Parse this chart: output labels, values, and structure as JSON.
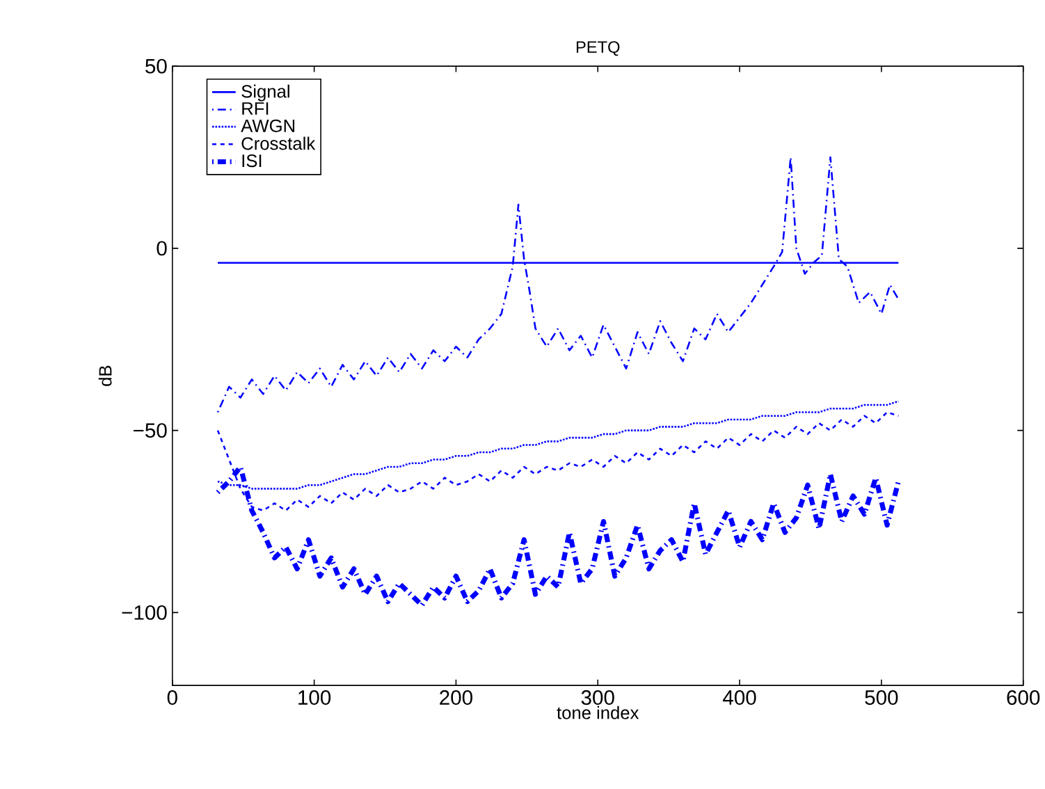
{
  "chart_data": {
    "type": "line",
    "title": "PETQ",
    "xlabel": "tone index",
    "ylabel": "dB",
    "xlim": [
      0,
      600
    ],
    "ylim": [
      -120,
      50
    ],
    "xticks": [
      0,
      100,
      200,
      300,
      400,
      500,
      600
    ],
    "yticks": [
      {
        "value": -100,
        "label": "−100"
      },
      {
        "value": -50,
        "label": "−50"
      },
      0,
      50
    ],
    "grid": false,
    "legend": "top left",
    "marker": "none",
    "x": [
      32,
      40,
      48,
      56,
      64,
      72,
      80,
      88,
      96,
      104,
      112,
      120,
      128,
      136,
      144,
      152,
      160,
      168,
      176,
      184,
      192,
      200,
      208,
      216,
      224,
      232,
      240,
      248,
      256,
      264,
      272,
      280,
      288,
      296,
      304,
      312,
      320,
      328,
      336,
      344,
      352,
      360,
      368,
      376,
      384,
      392,
      400,
      408,
      416,
      424,
      432,
      440,
      448,
      456,
      464,
      472,
      480,
      488,
      496,
      504,
      512
    ],
    "series": [
      {
        "name": "Signal",
        "color": "#0000ff",
        "line_style": "solid",
        "x": [
          32,
          512
        ],
        "values": [
          -4,
          -4
        ]
      },
      {
        "name": "RFI",
        "color": "#0000ff",
        "line_style": "dashdot",
        "x": [
          32,
          40,
          48,
          56,
          64,
          72,
          80,
          88,
          96,
          104,
          112,
          120,
          128,
          136,
          144,
          152,
          160,
          168,
          176,
          184,
          192,
          200,
          208,
          216,
          224,
          232,
          240,
          244,
          248,
          252,
          256,
          264,
          272,
          280,
          288,
          296,
          304,
          312,
          320,
          328,
          336,
          344,
          352,
          360,
          368,
          376,
          384,
          392,
          400,
          408,
          416,
          424,
          430,
          436,
          440,
          446,
          452,
          458,
          464,
          470,
          476,
          484,
          492,
          500,
          506,
          512
        ],
        "values": [
          -45,
          -38,
          -41,
          -36,
          -40,
          -35,
          -39,
          -34,
          -37,
          -33,
          -38,
          -32,
          -36,
          -31,
          -35,
          -30,
          -34,
          -29,
          -33,
          -28,
          -31,
          -27,
          -30,
          -25,
          -22,
          -18,
          -5,
          12,
          -3,
          -12,
          -22,
          -27,
          -22,
          -28,
          -24,
          -30,
          -21,
          -27,
          -33,
          -23,
          -29,
          -20,
          -26,
          -31,
          -22,
          -25,
          -18,
          -23,
          -19,
          -15,
          -10,
          -5,
          -1,
          25,
          0,
          -7,
          -4,
          -2,
          25,
          -3,
          -5,
          -15,
          -12,
          -18,
          -10,
          -14
        ]
      },
      {
        "name": "AWGN",
        "color": "#0000ff",
        "line_style": "dotted",
        "values": [
          -64,
          -65,
          -65,
          -66,
          -66,
          -66,
          -66,
          -66,
          -65,
          -65,
          -64,
          -63,
          -62,
          -62,
          -61,
          -60,
          -60,
          -59,
          -59,
          -58,
          -58,
          -57,
          -57,
          -56,
          -56,
          -55,
          -55,
          -54,
          -54,
          -53,
          -53,
          -52,
          -52,
          -52,
          -51,
          -51,
          -50,
          -50,
          -50,
          -49,
          -49,
          -49,
          -48,
          -48,
          -48,
          -47,
          -47,
          -47,
          -46,
          -46,
          -46,
          -45,
          -45,
          -45,
          -44,
          -44,
          -44,
          -43,
          -43,
          -43,
          -42
        ]
      },
      {
        "name": "Crosstalk",
        "color": "#0000ff",
        "line_style": "dashed",
        "values": [
          -50,
          -58,
          -66,
          -71,
          -72,
          -70,
          -72,
          -69,
          -71,
          -68,
          -70,
          -67,
          -69,
          -66,
          -68,
          -65,
          -67,
          -66,
          -64,
          -66,
          -63,
          -65,
          -64,
          -62,
          -64,
          -61,
          -63,
          -60,
          -62,
          -60,
          -61,
          -59,
          -60,
          -58,
          -60,
          -57,
          -59,
          -56,
          -58,
          -55,
          -57,
          -54,
          -56,
          -53,
          -55,
          -52,
          -54,
          -51,
          -53,
          -50,
          -52,
          -49,
          -51,
          -48,
          -50,
          -47,
          -49,
          -46,
          -48,
          -45,
          -46
        ]
      },
      {
        "name": "ISI",
        "color": "#0000ff",
        "line_style": "dashdot bold",
        "values": [
          -67,
          -64,
          -60,
          -72,
          -78,
          -85,
          -82,
          -88,
          -80,
          -90,
          -85,
          -93,
          -88,
          -95,
          -90,
          -97,
          -92,
          -95,
          -98,
          -93,
          -96,
          -90,
          -97,
          -94,
          -88,
          -96,
          -92,
          -80,
          -95,
          -90,
          -93,
          -78,
          -92,
          -88,
          -75,
          -90,
          -85,
          -76,
          -88,
          -83,
          -80,
          -86,
          -70,
          -84,
          -78,
          -72,
          -82,
          -75,
          -80,
          -70,
          -78,
          -74,
          -65,
          -77,
          -62,
          -75,
          -68,
          -73,
          -63,
          -76,
          -64
        ]
      }
    ]
  }
}
